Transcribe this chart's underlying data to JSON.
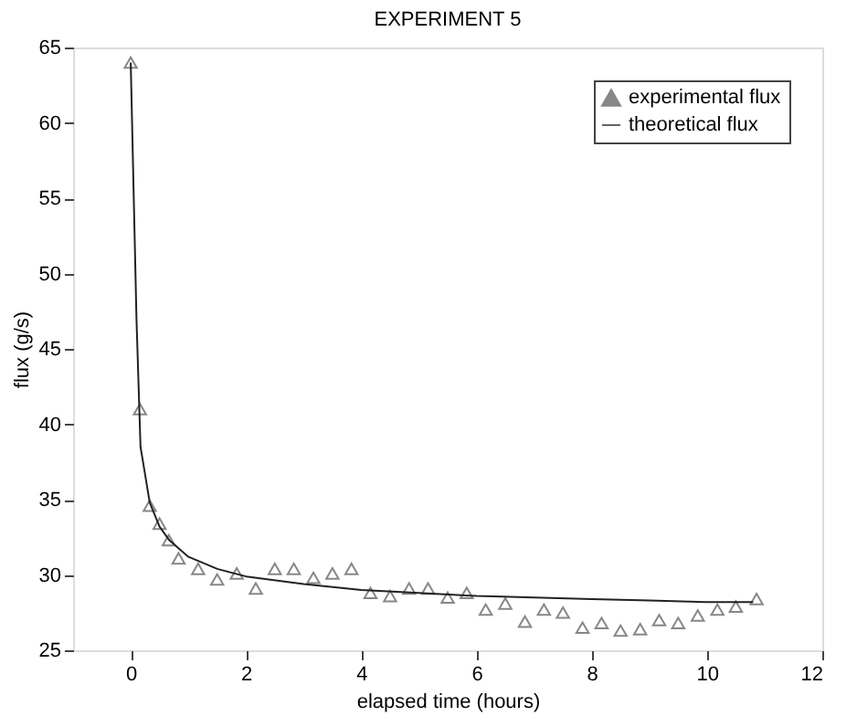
{
  "chart_data": {
    "type": "scatter",
    "title": "EXPERIMENT 5",
    "xlabel": "elapsed time (hours)",
    "ylabel": "flux (g/s)",
    "xlim": [
      -1,
      12
    ],
    "ylim": [
      25,
      65
    ],
    "xticks": [
      0,
      2,
      4,
      6,
      8,
      10,
      12
    ],
    "yticks": [
      25,
      30,
      35,
      40,
      45,
      50,
      55,
      60,
      65
    ],
    "grid": false,
    "legend": "top right",
    "series": [
      {
        "name": "experimental flux",
        "marker": "triangle",
        "color": "#555555",
        "x": [
          0,
          0.16,
          0.33,
          0.5,
          0.66,
          0.83,
          1.17,
          1.5,
          1.84,
          2.17,
          2.5,
          2.83,
          3.17,
          3.5,
          3.83,
          4.16,
          4.5,
          4.83,
          5.16,
          5.5,
          5.83,
          6.16,
          6.5,
          6.84,
          7.17,
          7.5,
          7.84,
          8.17,
          8.5,
          8.84,
          9.17,
          9.5,
          9.84,
          10.18,
          10.5,
          10.86
        ],
        "values": [
          64,
          41.0,
          34.6,
          33.4,
          32.3,
          31.1,
          30.4,
          29.7,
          30.1,
          29.1,
          30.4,
          30.4,
          29.8,
          30.1,
          30.4,
          28.8,
          28.6,
          29.1,
          29.1,
          28.5,
          28.8,
          27.7,
          28.1,
          26.9,
          27.7,
          27.5,
          26.5,
          26.8,
          26.3,
          26.4,
          27.0,
          26.8,
          27.3,
          27.7,
          27.9,
          28.4
        ]
      },
      {
        "name": "theoretical flux",
        "type": "line",
        "marker": "none",
        "line_style": "solid",
        "color": "#222222",
        "x": [
          0,
          0.1,
          0.17,
          0.33,
          0.5,
          0.67,
          1,
          1.5,
          2,
          3,
          4,
          5,
          6,
          7,
          8,
          9,
          10,
          10.8
        ],
        "values": [
          64,
          47,
          38.5,
          34.8,
          33.2,
          32.3,
          31.2,
          30.4,
          29.9,
          29.4,
          29.0,
          28.8,
          28.6,
          28.5,
          28.4,
          28.3,
          28.2,
          28.2
        ]
      }
    ]
  }
}
